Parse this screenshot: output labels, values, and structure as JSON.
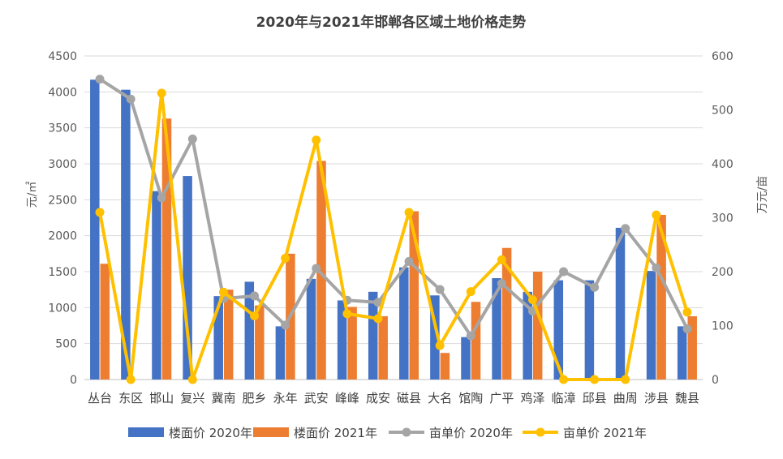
{
  "chart_data": {
    "type": "bar",
    "title": "2020年与2021年邯郸各区域土地价格走势",
    "categories": [
      "丛台",
      "东区",
      "邯山",
      "复兴",
      "冀南",
      "肥乡",
      "永年",
      "武安",
      "峰峰",
      "成安",
      "磁县",
      "大名",
      "馆陶",
      "广平",
      "鸡泽",
      "临漳",
      "邱县",
      "曲周",
      "涉县",
      "魏县"
    ],
    "ylabel": "元/㎡",
    "y2label": "万元/亩",
    "ylim": [
      0,
      4500
    ],
    "y2lim": [
      0,
      600
    ],
    "yticks": [
      "0",
      "500",
      "1000",
      "1500",
      "2000",
      "2500",
      "3000",
      "3500",
      "4000",
      "4500"
    ],
    "y2ticks": [
      "0",
      "100",
      "200",
      "300",
      "400",
      "500",
      "600"
    ],
    "grid": true,
    "legend_position": "bottom",
    "bar_series": [
      {
        "name": "楼面价 2020年",
        "color": "#4472C4",
        "axis": "left",
        "values": [
          4170,
          4030,
          2620,
          2830,
          1160,
          1360,
          740,
          1400,
          1100,
          1220,
          1560,
          1170,
          590,
          1410,
          1220,
          1380,
          1380,
          2110,
          1510,
          740
        ]
      },
      {
        "name": "楼面价 2021年",
        "color": "#ED7D31",
        "axis": "left",
        "values": [
          1610,
          0,
          3630,
          0,
          1250,
          1030,
          1750,
          3040,
          1010,
          880,
          2340,
          370,
          1080,
          1830,
          1500,
          0,
          0,
          0,
          2290,
          880
        ]
      }
    ],
    "line_series": [
      {
        "name": "亩单价 2020年",
        "color": "#A5A5A5",
        "axis": "right",
        "values": [
          557,
          520,
          337,
          446,
          150,
          155,
          101,
          206,
          147,
          143,
          219,
          167,
          81,
          178,
          127,
          200,
          171,
          280,
          207,
          94
        ]
      },
      {
        "name": "亩单价 2021年",
        "color": "#FFC000",
        "axis": "right",
        "values": [
          310,
          0,
          531,
          0,
          162,
          118,
          225,
          444,
          122,
          113,
          310,
          63,
          163,
          222,
          148,
          0,
          0,
          0,
          305,
          125
        ]
      }
    ],
    "legend_order": [
      "楼面价 2020年",
      "楼面价 2021年",
      "亩单价 2020年",
      "亩单价 2021年"
    ]
  }
}
